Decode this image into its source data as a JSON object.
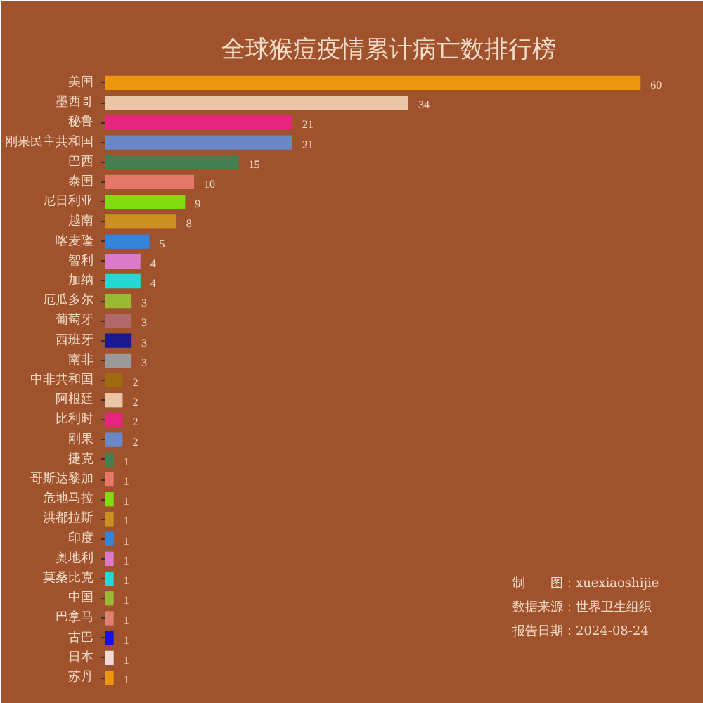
{
  "chart_data": {
    "type": "bar",
    "orientation": "horizontal",
    "title": "全球猴痘疫情累计病亡数排行榜",
    "categories": [
      "美国",
      "墨西哥",
      "秘鲁",
      "刚果民主共和国",
      "巴西",
      "泰国",
      "尼日利亚",
      "越南",
      "喀麦隆",
      "智利",
      "加纳",
      "厄瓜多尔",
      "葡萄牙",
      "西班牙",
      "南非",
      "中非共和国",
      "阿根廷",
      "比利时",
      "刚果",
      "捷克",
      "哥斯达黎加",
      "危地马拉",
      "洪都拉斯",
      "印度",
      "奥地利",
      "莫桑比克",
      "中国",
      "巴拿马",
      "古巴",
      "日本",
      "苏丹"
    ],
    "values": [
      60,
      34,
      21,
      21,
      15,
      10,
      9,
      8,
      5,
      4,
      4,
      3,
      3,
      3,
      3,
      2,
      2,
      2,
      2,
      1,
      1,
      1,
      1,
      1,
      1,
      1,
      1,
      1,
      1,
      1,
      1
    ],
    "colors": [
      "#ee960f",
      "#eac6a6",
      "#e8257e",
      "#6c87c6",
      "#43804f",
      "#e6786a",
      "#80de0e",
      "#cc8f22",
      "#3584dc",
      "#dc7ac8",
      "#22d9d6",
      "#9aba34",
      "#b06a6a",
      "#1a1a90",
      "#999999",
      "#a06a10",
      "#eac6a6",
      "#e8257e",
      "#6c87c6",
      "#43804f",
      "#e6786a",
      "#80de0e",
      "#cc8f22",
      "#3584dc",
      "#dc7ac8",
      "#22d9d6",
      "#9aba34",
      "#e08070",
      "#1a10e0",
      "#f0dcd4",
      "#ee960f"
    ],
    "data_labels": true,
    "grid": false,
    "annotations": [
      "制　　图：xuexiaoshijie",
      "数据来源：世界卫生组织",
      "报告日期：2024-08-24"
    ]
  }
}
